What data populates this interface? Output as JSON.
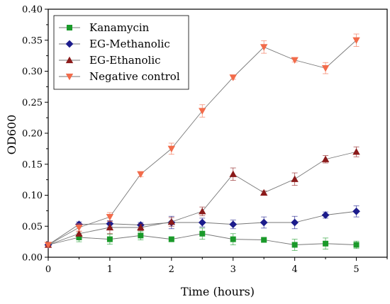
{
  "chart_data": {
    "type": "line",
    "title": "",
    "xlabel": "Time (hours)",
    "ylabel": "OD600",
    "xlim": [
      0,
      5.5
    ],
    "ylim": [
      0,
      0.4
    ],
    "xticks": [
      0,
      1,
      2,
      3,
      4,
      5
    ],
    "yticks": [
      0.0,
      0.05,
      0.1,
      0.15,
      0.2,
      0.25,
      0.3,
      0.35,
      0.4
    ],
    "ytick_labels": [
      "0.00",
      "0.05",
      "0.10",
      "0.15",
      "0.20",
      "0.25",
      "0.30",
      "0.35",
      "0.40"
    ],
    "x": [
      0,
      0.5,
      1,
      1.5,
      2,
      2.5,
      3,
      3.5,
      4,
      4.5,
      5
    ],
    "grid": false,
    "legend_position": "top-left",
    "series": [
      {
        "name": "Kanamycin",
        "marker": "square",
        "color": "#1a9a2a",
        "values": [
          0.02,
          0.032,
          0.029,
          0.035,
          0.029,
          0.038,
          0.029,
          0.028,
          0.02,
          0.022,
          0.02
        ],
        "errors": [
          0.002,
          0.007,
          0.008,
          0.007,
          0.003,
          0.009,
          0.009,
          0.003,
          0.009,
          0.009,
          0.006
        ]
      },
      {
        "name": "EG-Methanolic",
        "marker": "diamond",
        "color": "#1c1c8c",
        "values": [
          0.02,
          0.053,
          0.054,
          0.052,
          0.056,
          0.056,
          0.053,
          0.056,
          0.056,
          0.068,
          0.074
        ],
        "errors": [
          0.002,
          0.004,
          0.005,
          0.004,
          0.01,
          0.007,
          0.007,
          0.009,
          0.01,
          0.005,
          0.009
        ]
      },
      {
        "name": "EG-Ethanolic",
        "marker": "triangle-up",
        "color": "#8b1a1a",
        "values": [
          0.02,
          0.038,
          0.048,
          0.048,
          0.057,
          0.074,
          0.134,
          0.104,
          0.126,
          0.158,
          0.17
        ],
        "errors": [
          0.002,
          0.004,
          0.01,
          0.005,
          0.007,
          0.007,
          0.01,
          0.003,
          0.01,
          0.006,
          0.008
        ]
      },
      {
        "name": "Negative control",
        "marker": "triangle-down",
        "color": "#f26b4a",
        "values": [
          0.02,
          0.048,
          0.065,
          0.134,
          0.175,
          0.236,
          0.29,
          0.339,
          0.318,
          0.305,
          0.35
        ],
        "errors": [
          0.002,
          0.006,
          0.007,
          0.004,
          0.009,
          0.01,
          0.003,
          0.01,
          0.003,
          0.009,
          0.01
        ]
      }
    ]
  }
}
